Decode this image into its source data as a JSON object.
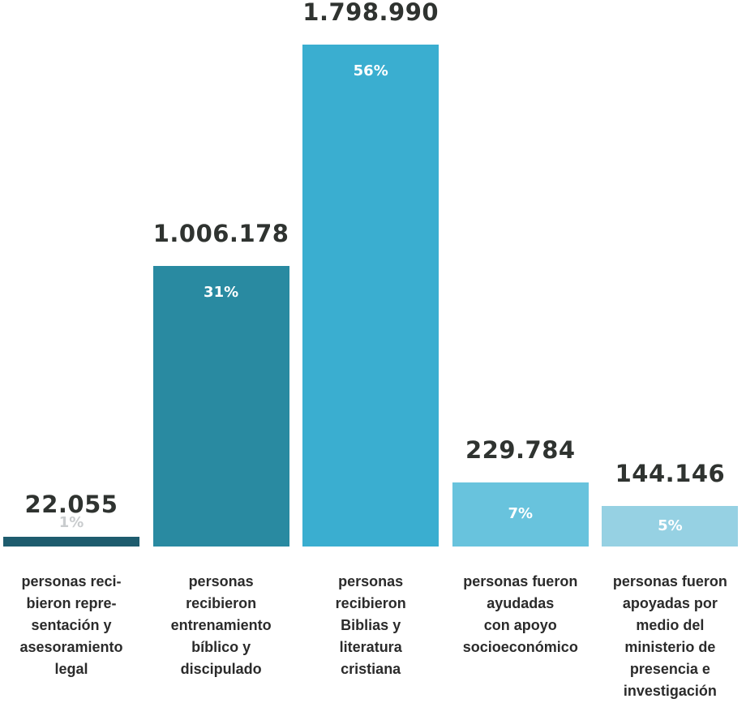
{
  "chart_data": {
    "type": "bar",
    "categories": [
      "personas reci-\nbieron repre-\nsentación y\nasesoramiento\nlegal",
      "personas\nrecibieron\nentrenamiento\nbíblico y\ndiscipulado",
      "personas\nrecibieron\nBiblias y\nliteratura\ncristiana",
      "personas fueron\nayudadas\ncon apoyo\nsocioeconómico",
      "personas fueron\napoyadas por\nmedio del\nministerio de\npresencia e\ninvestigación"
    ],
    "values": [
      22055,
      1006178,
      1798990,
      229784,
      144146
    ],
    "value_labels": [
      "22.055",
      "1.006.178",
      "1.798.990",
      "229.784",
      "144.146"
    ],
    "percent_labels": [
      "1%",
      "31%",
      "56%",
      "7%",
      "5%"
    ],
    "colors": [
      "#1e5c6e",
      "#298aa1",
      "#3aaed0",
      "#68c3dd",
      "#96d1e3"
    ],
    "percent_label_colors": [
      "#c9ccce",
      "#ffffff",
      "#ffffff",
      "#ffffff",
      "#ffffff"
    ],
    "title": "",
    "xlabel": "",
    "ylabel": "",
    "legend": "none",
    "grid": false
  }
}
